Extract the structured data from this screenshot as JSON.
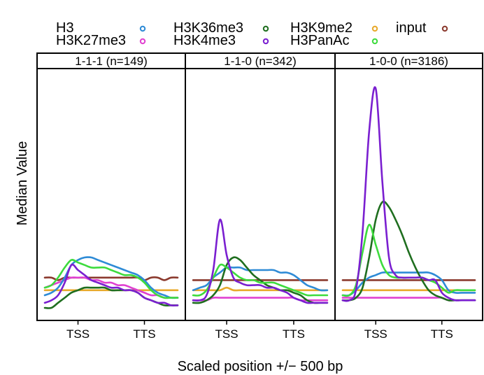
{
  "chart_data": {
    "type": "line",
    "ylabel": "Median Value",
    "xlabel": "Scaled position +/− 500 bp",
    "x_ticks": [
      "TSS",
      "TTS"
    ],
    "x_tick_positions": [
      0,
      1000
    ],
    "xlim": [
      -500,
      1500
    ],
    "ylim": [
      0,
      1
    ],
    "y_ticks_shown": false,
    "grid": false,
    "legend": {
      "placement": "top",
      "entries": [
        {
          "name": "H3",
          "color": "#2E8BD6"
        },
        {
          "name": "H3K36me3",
          "color": "#1F6E1F"
        },
        {
          "name": "H3K9me2",
          "color": "#E8A92A"
        },
        {
          "name": "input",
          "color": "#8B3A2E"
        },
        {
          "name": "H3K27me3",
          "color": "#E040D0"
        },
        {
          "name": "H3K4me3",
          "color": "#7A1FD0"
        },
        {
          "name": "H3PanAc",
          "color": "#3DDB3D"
        }
      ]
    },
    "x": [
      -500,
      -400,
      -300,
      -200,
      -100,
      0,
      100,
      200,
      300,
      400,
      500,
      600,
      700,
      800,
      900,
      1000,
      1100,
      1200,
      1300,
      1400,
      1500
    ],
    "panels": [
      {
        "title": "1-1-1 (n=149)",
        "series": [
          {
            "name": "H3",
            "values": [
              0.1,
              0.11,
              0.13,
              0.17,
              0.22,
              0.24,
              0.25,
              0.25,
              0.24,
              0.23,
              0.22,
              0.21,
              0.2,
              0.19,
              0.18,
              0.16,
              0.13,
              0.11,
              0.1,
              0.09,
              0.09
            ]
          },
          {
            "name": "H3K36me3",
            "values": [
              0.05,
              0.05,
              0.07,
              0.09,
              0.11,
              0.12,
              0.13,
              0.13,
              0.13,
              0.13,
              0.12,
              0.12,
              0.12,
              0.12,
              0.11,
              0.09,
              0.08,
              0.07,
              0.06,
              0.06,
              0.06
            ]
          },
          {
            "name": "H3K9me2",
            "values": [
              0.12,
              0.12,
              0.12,
              0.12,
              0.12,
              0.12,
              0.12,
              0.12,
              0.12,
              0.12,
              0.12,
              0.12,
              0.12,
              0.12,
              0.12,
              0.12,
              0.12,
              0.12,
              0.12,
              0.12,
              0.12
            ]
          },
          {
            "name": "input",
            "values": [
              0.17,
              0.17,
              0.16,
              0.17,
              0.17,
              0.17,
              0.17,
              0.17,
              0.17,
              0.17,
              0.17,
              0.17,
              0.17,
              0.17,
              0.17,
              0.16,
              0.17,
              0.17,
              0.16,
              0.17,
              0.17
            ]
          },
          {
            "name": "H3K27me3",
            "values": [
              0.13,
              0.14,
              0.15,
              0.16,
              0.17,
              0.17,
              0.17,
              0.16,
              0.16,
              0.15,
              0.15,
              0.14,
              0.14,
              0.13,
              0.12,
              0.11,
              0.1,
              0.1,
              0.09,
              0.09,
              0.09
            ]
          },
          {
            "name": "H3K4me3",
            "values": [
              0.07,
              0.08,
              0.1,
              0.15,
              0.22,
              0.2,
              0.18,
              0.16,
              0.15,
              0.14,
              0.13,
              0.13,
              0.12,
              0.12,
              0.11,
              0.09,
              0.08,
              0.07,
              0.07,
              0.06,
              0.06
            ]
          },
          {
            "name": "H3PanAc",
            "values": [
              0.13,
              0.14,
              0.17,
              0.21,
              0.24,
              0.23,
              0.22,
              0.21,
              0.21,
              0.21,
              0.2,
              0.19,
              0.18,
              0.18,
              0.17,
              0.15,
              0.12,
              0.1,
              0.09,
              0.09,
              0.09
            ]
          }
        ]
      },
      {
        "title": "1-1-0 (n=342)",
        "series": [
          {
            "name": "H3",
            "values": [
              0.12,
              0.13,
              0.14,
              0.17,
              0.19,
              0.21,
              0.21,
              0.21,
              0.2,
              0.2,
              0.2,
              0.2,
              0.2,
              0.19,
              0.19,
              0.18,
              0.16,
              0.14,
              0.13,
              0.12,
              0.12
            ]
          },
          {
            "name": "H3K36me3",
            "values": [
              0.07,
              0.07,
              0.08,
              0.1,
              0.14,
              0.22,
              0.25,
              0.24,
              0.21,
              0.18,
              0.16,
              0.14,
              0.13,
              0.12,
              0.12,
              0.11,
              0.1,
              0.08,
              0.07,
              0.07,
              0.07
            ]
          },
          {
            "name": "H3K9me2",
            "values": [
              0.12,
              0.12,
              0.12,
              0.12,
              0.12,
              0.13,
              0.12,
              0.12,
              0.12,
              0.12,
              0.12,
              0.12,
              0.12,
              0.12,
              0.12,
              0.12,
              0.12,
              0.12,
              0.12,
              0.12,
              0.12
            ]
          },
          {
            "name": "input",
            "values": [
              0.16,
              0.16,
              0.16,
              0.16,
              0.16,
              0.16,
              0.16,
              0.16,
              0.16,
              0.16,
              0.16,
              0.16,
              0.16,
              0.16,
              0.16,
              0.16,
              0.16,
              0.16,
              0.16,
              0.16,
              0.16
            ]
          },
          {
            "name": "H3K27me3",
            "values": [
              0.08,
              0.08,
              0.08,
              0.09,
              0.09,
              0.09,
              0.09,
              0.09,
              0.09,
              0.09,
              0.09,
              0.09,
              0.09,
              0.09,
              0.09,
              0.09,
              0.08,
              0.08,
              0.08,
              0.08,
              0.08
            ]
          },
          {
            "name": "H3K4me3",
            "values": [
              0.08,
              0.08,
              0.1,
              0.2,
              0.4,
              0.26,
              0.17,
              0.15,
              0.14,
              0.14,
              0.14,
              0.13,
              0.13,
              0.12,
              0.11,
              0.09,
              0.08,
              0.07,
              0.07,
              0.07,
              0.07
            ]
          },
          {
            "name": "H3PanAc",
            "values": [
              0.1,
              0.1,
              0.12,
              0.17,
              0.22,
              0.21,
              0.19,
              0.17,
              0.16,
              0.16,
              0.15,
              0.15,
              0.15,
              0.14,
              0.13,
              0.12,
              0.11,
              0.1,
              0.1,
              0.1,
              0.1
            ]
          }
        ]
      },
      {
        "title": "1-0-0 (n=3186)",
        "series": [
          {
            "name": "H3",
            "values": [
              0.1,
              0.1,
              0.12,
              0.15,
              0.17,
              0.18,
              0.19,
              0.19,
              0.19,
              0.19,
              0.19,
              0.19,
              0.19,
              0.19,
              0.18,
              0.16,
              0.12,
              0.11,
              0.11,
              0.11,
              0.11
            ]
          },
          {
            "name": "H3K36me3",
            "values": [
              0.08,
              0.08,
              0.09,
              0.13,
              0.25,
              0.4,
              0.47,
              0.45,
              0.4,
              0.34,
              0.27,
              0.21,
              0.16,
              0.12,
              0.1,
              0.09,
              0.08,
              0.08,
              0.08,
              0.08,
              0.08
            ]
          },
          {
            "name": "H3K9me2",
            "values": [
              0.12,
              0.12,
              0.12,
              0.12,
              0.12,
              0.12,
              0.12,
              0.12,
              0.12,
              0.12,
              0.12,
              0.12,
              0.12,
              0.12,
              0.12,
              0.12,
              0.12,
              0.12,
              0.12,
              0.12,
              0.12
            ]
          },
          {
            "name": "input",
            "values": [
              0.16,
              0.16,
              0.16,
              0.16,
              0.16,
              0.16,
              0.16,
              0.16,
              0.16,
              0.16,
              0.16,
              0.16,
              0.16,
              0.16,
              0.16,
              0.16,
              0.16,
              0.16,
              0.16,
              0.16,
              0.16
            ]
          },
          {
            "name": "H3K27me3",
            "values": [
              0.09,
              0.09,
              0.09,
              0.09,
              0.09,
              0.09,
              0.09,
              0.09,
              0.09,
              0.09,
              0.09,
              0.09,
              0.09,
              0.09,
              0.09,
              0.09,
              0.08,
              0.08,
              0.08,
              0.08,
              0.08
            ]
          },
          {
            "name": "H3K4me3",
            "values": [
              0.08,
              0.08,
              0.12,
              0.35,
              0.75,
              0.92,
              0.55,
              0.25,
              0.18,
              0.17,
              0.17,
              0.17,
              0.17,
              0.16,
              0.16,
              0.11,
              0.09,
              0.08,
              0.08,
              0.08,
              0.08
            ]
          },
          {
            "name": "H3PanAc",
            "values": [
              0.1,
              0.1,
              0.14,
              0.27,
              0.38,
              0.3,
              0.22,
              0.18,
              0.17,
              0.17,
              0.17,
              0.17,
              0.17,
              0.16,
              0.15,
              0.13,
              0.11,
              0.12,
              0.12,
              0.12,
              0.12
            ]
          }
        ]
      }
    ]
  }
}
